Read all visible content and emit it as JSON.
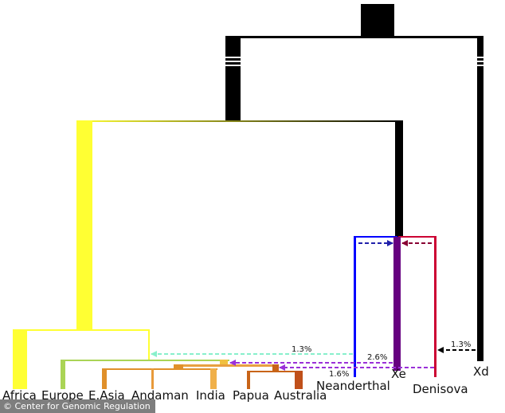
{
  "labels": {
    "africa": "Africa",
    "europe": "Europe",
    "east_asia": "E.Asia",
    "andaman": "Andaman",
    "india": "India",
    "papua": "Papua",
    "australia": "Australia",
    "neanderthal": "Neanderthal",
    "xe": "Xe",
    "denisova": "Denisova",
    "xd": "Xd"
  },
  "introgression": {
    "neanderthal_to_nonafricans": "1.3%",
    "xe_to_asians": "2.6%",
    "xe_to_papuans": "1.6%",
    "xd_to_denisova": "1.3%"
  },
  "credit": "© Center for Genomic Regulation",
  "colors": {
    "archaic": "#000000",
    "modern_human": "#ffff33",
    "africa": "#ffff33",
    "europe": "#aad456",
    "east_asia": "#e0902a",
    "andaman": "#e89a3a",
    "india": "#f0b04a",
    "papua": "#c86418",
    "australia": "#c0501a",
    "neanderthal": "#0000ff",
    "xe": "#660080",
    "denisova": "#cc0033",
    "arrow_neanderthal": "#88f0cc",
    "arrow_xe": "#9a30d8",
    "arrow_xd": "#000000"
  }
}
